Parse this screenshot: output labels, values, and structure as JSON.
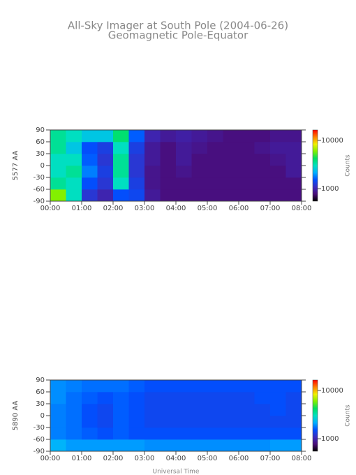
{
  "chart_data": [
    {
      "type": "heatmap",
      "title": "All-Sky Imager at South Pole (2004-06-26)",
      "subtitle": "Geomagnetic Pole-Equator",
      "ylabel": "5577 AA",
      "colorbar_label": "Counts",
      "colorscale": "log",
      "colormap": [
        "#000000",
        "#4a0c78",
        "#3a2cc0",
        "#0050ff",
        "#00b0ff",
        "#00e0c0",
        "#00e060",
        "#80f000",
        "#f0f000",
        "#ff8000",
        "#ff0000"
      ],
      "xlim": [
        0,
        8
      ],
      "xticks": [
        {
          "value": 0,
          "label": "00:00"
        },
        {
          "value": 1,
          "label": "01:00"
        },
        {
          "value": 2,
          "label": "02:00"
        },
        {
          "value": 3,
          "label": "03:00"
        },
        {
          "value": 4,
          "label": "04:00"
        },
        {
          "value": 5,
          "label": "05:00"
        },
        {
          "value": 6,
          "label": "06:00"
        },
        {
          "value": 7,
          "label": "07:00"
        },
        {
          "value": 8,
          "label": "08:00"
        }
      ],
      "ylim": [
        -90,
        90
      ],
      "yticks": [
        90,
        60,
        30,
        0,
        -30,
        -60,
        -90
      ],
      "clim": [
        550,
        16500
      ],
      "cticks": [
        1000,
        10000
      ],
      "xbins": [
        0,
        0.5,
        1,
        1.5,
        2,
        2.5,
        3,
        3.5,
        4,
        4.5,
        5,
        5.5,
        6,
        6.5,
        7,
        7.5,
        8
      ],
      "ybins": [
        -90,
        -60,
        -30,
        0,
        30,
        60,
        90
      ],
      "values": [
        [
          6000,
          3000,
          1200,
          1000,
          1500,
          1400,
          900,
          800,
          800,
          800,
          800,
          800,
          800,
          800,
          800,
          800
        ],
        [
          3500,
          3000,
          1500,
          1200,
          3000,
          1300,
          850,
          800,
          800,
          800,
          800,
          800,
          800,
          800,
          800,
          800
        ],
        [
          3000,
          3500,
          1800,
          1300,
          3500,
          1200,
          850,
          800,
          850,
          800,
          800,
          800,
          800,
          800,
          800,
          900
        ],
        [
          3000,
          3000,
          1600,
          1200,
          3500,
          1200,
          900,
          800,
          900,
          800,
          800,
          800,
          800,
          800,
          850,
          900
        ],
        [
          3500,
          2500,
          1500,
          1300,
          3000,
          1300,
          900,
          800,
          900,
          850,
          800,
          800,
          800,
          850,
          900,
          900
        ],
        [
          3500,
          3000,
          2500,
          2500,
          4000,
          1600,
          1000,
          900,
          950,
          900,
          850,
          800,
          800,
          800,
          850,
          850
        ]
      ]
    },
    {
      "type": "heatmap",
      "ylabel": "5890 AA",
      "xlabel": "Universal Time",
      "colorbar_label": "Counts",
      "colorscale": "log",
      "colormap": [
        "#000000",
        "#4a0c78",
        "#3a2cc0",
        "#0050ff",
        "#00b0ff",
        "#00e0c0",
        "#00e060",
        "#80f000",
        "#f0f000",
        "#ff8000",
        "#ff0000"
      ],
      "xlim": [
        0,
        8
      ],
      "xticks": [
        {
          "value": 0,
          "label": "00:00"
        },
        {
          "value": 1,
          "label": "01:00"
        },
        {
          "value": 2,
          "label": "02:00"
        },
        {
          "value": 3,
          "label": "03:00"
        },
        {
          "value": 4,
          "label": "04:00"
        },
        {
          "value": 5,
          "label": "05:00"
        },
        {
          "value": 6,
          "label": "06:00"
        },
        {
          "value": 7,
          "label": "07:00"
        },
        {
          "value": 8,
          "label": "08:00"
        }
      ],
      "ylim": [
        -90,
        90
      ],
      "yticks": [
        90,
        60,
        30,
        0,
        -30,
        -60,
        -90
      ],
      "clim": [
        550,
        16500
      ],
      "cticks": [
        1000,
        10000
      ],
      "xbins": [
        0,
        0.5,
        1,
        1.5,
        2,
        2.5,
        3,
        3.5,
        4,
        4.5,
        5,
        5.5,
        6,
        6.5,
        7,
        7.5,
        8
      ],
      "ybins": [
        -90,
        -60,
        -30,
        0,
        30,
        60,
        90
      ],
      "values": [
        [
          2200,
          2000,
          2000,
          2000,
          2000,
          2000,
          1900,
          1900,
          1900,
          1900,
          1900,
          1900,
          1900,
          1900,
          2000,
          2000
        ],
        [
          1800,
          1700,
          1600,
          1500,
          1600,
          1500,
          1500,
          1500,
          1500,
          1500,
          1500,
          1500,
          1500,
          1500,
          1500,
          1500
        ],
        [
          1800,
          1700,
          1500,
          1400,
          1600,
          1500,
          1400,
          1400,
          1400,
          1400,
          1400,
          1400,
          1400,
          1400,
          1400,
          1400
        ],
        [
          1800,
          1700,
          1500,
          1400,
          1600,
          1500,
          1400,
          1400,
          1400,
          1400,
          1400,
          1400,
          1400,
          1400,
          1500,
          1400
        ],
        [
          1900,
          1700,
          1600,
          1500,
          1600,
          1500,
          1400,
          1400,
          1400,
          1400,
          1400,
          1400,
          1400,
          1500,
          1500,
          1400
        ],
        [
          1900,
          1800,
          1700,
          1700,
          1700,
          1600,
          1500,
          1500,
          1500,
          1500,
          1500,
          1500,
          1500,
          1500,
          1500,
          1500
        ]
      ]
    }
  ]
}
